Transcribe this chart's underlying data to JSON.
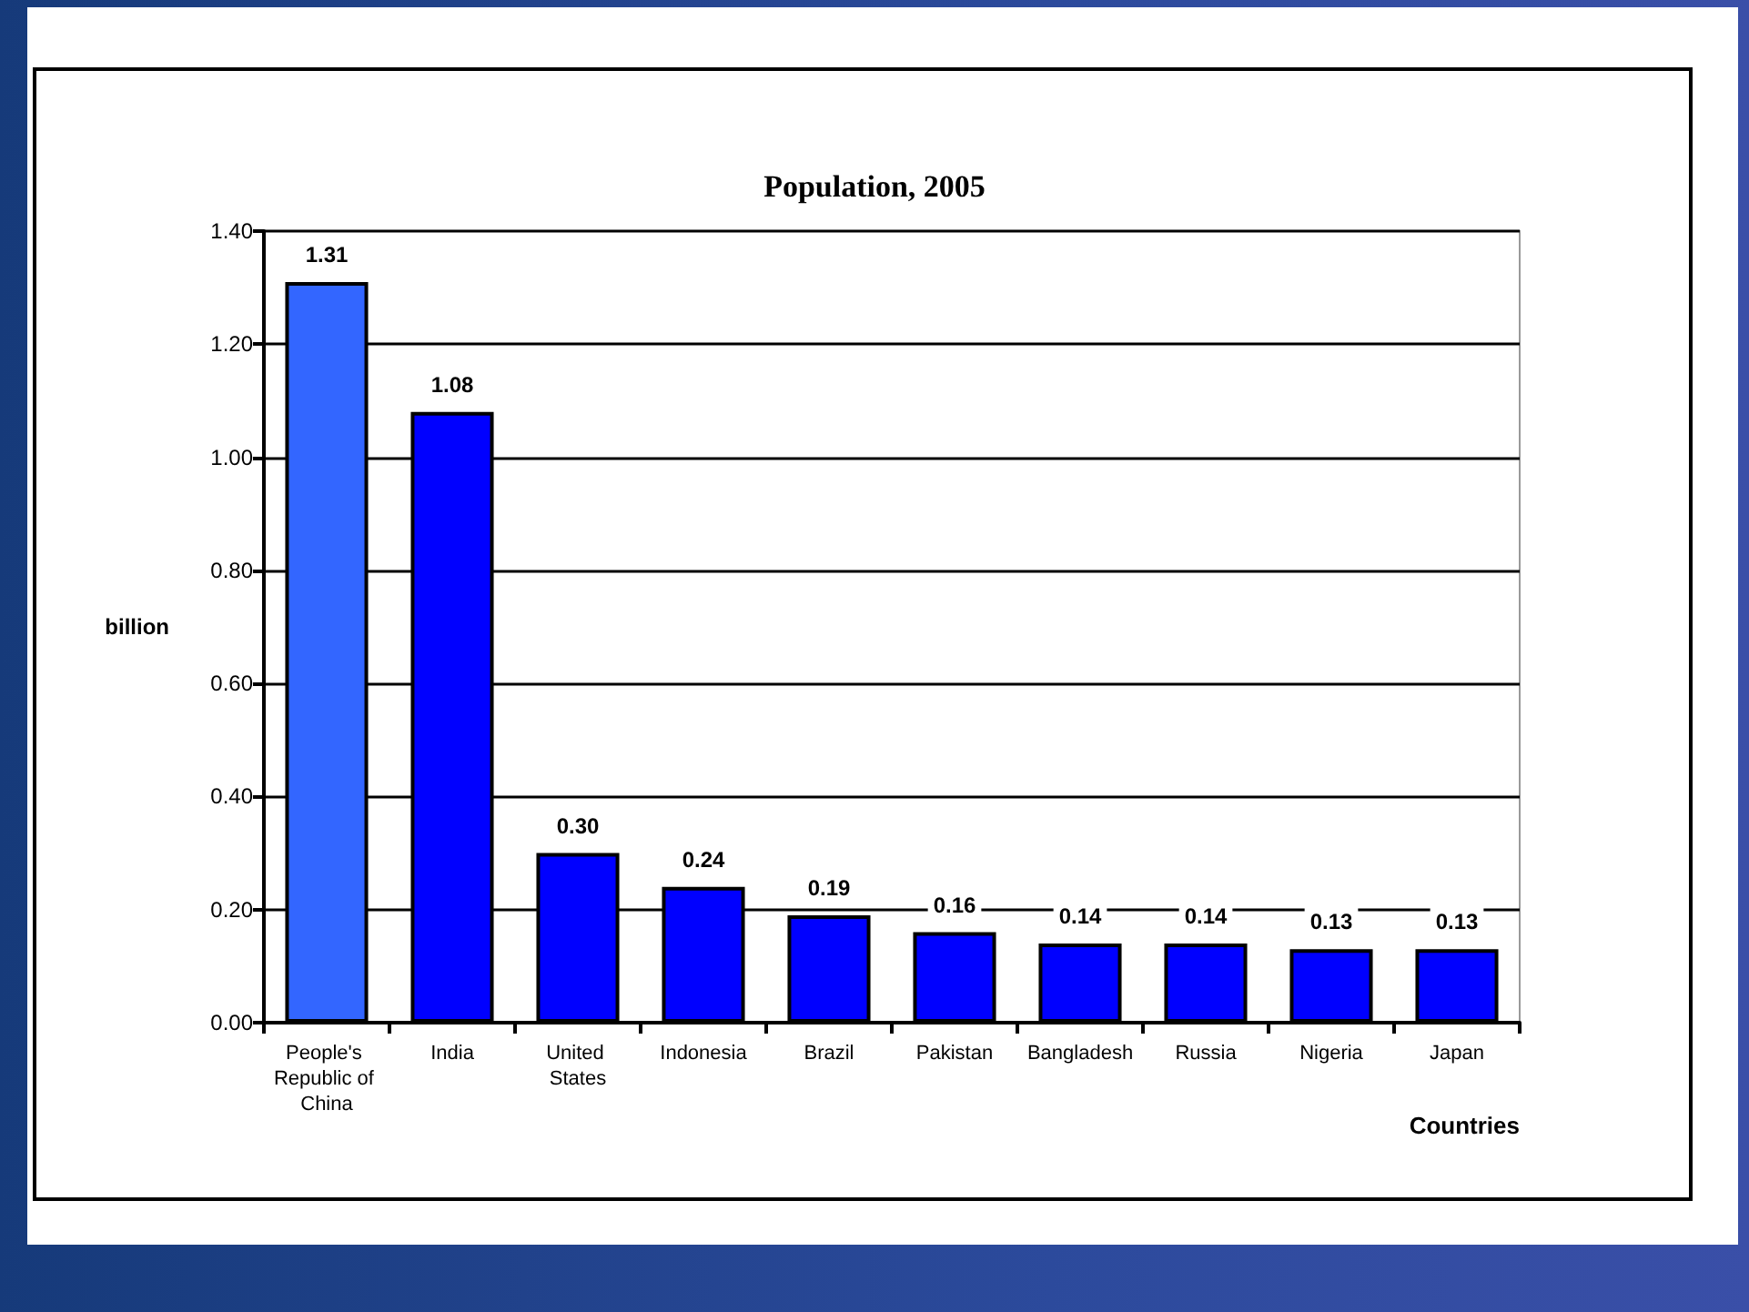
{
  "chart_data": {
    "type": "bar",
    "title": "Population, 2005",
    "xlabel": "Countries",
    "ylabel": "billion",
    "categories": [
      "People's Republic of China",
      "India",
      "United States",
      "Indonesia",
      "Brazil",
      "Pakistan",
      "Bangladesh",
      "Russia",
      "Nigeria",
      "Japan"
    ],
    "values": [
      1.31,
      1.08,
      0.3,
      0.24,
      0.19,
      0.16,
      0.14,
      0.14,
      0.13,
      0.13
    ],
    "colors": [
      "#3366ff",
      "#0000ff",
      "#0000ff",
      "#0000ff",
      "#0000ff",
      "#0000ff",
      "#0000ff",
      "#0000ff",
      "#0000ff",
      "#0000ff"
    ],
    "value_labels": [
      "1.31",
      "1.08",
      "0.30",
      "0.24",
      "0.19",
      "0.16",
      "0.14",
      "0.14",
      "0.13",
      "0.13"
    ],
    "ylim": [
      0,
      1.4
    ],
    "yticks": [
      {
        "value": 0,
        "label": "0.00"
      },
      {
        "value": 0.2,
        "label": "0.20"
      },
      {
        "value": 0.4,
        "label": "0.40"
      },
      {
        "value": 0.6,
        "label": "0.60"
      },
      {
        "value": 0.8,
        "label": "0.80"
      },
      {
        "value": 1.0,
        "label": "1.00"
      },
      {
        "value": 1.2,
        "label": "1.20"
      },
      {
        "value": 1.4,
        "label": "1.40"
      }
    ],
    "grid": "y"
  }
}
